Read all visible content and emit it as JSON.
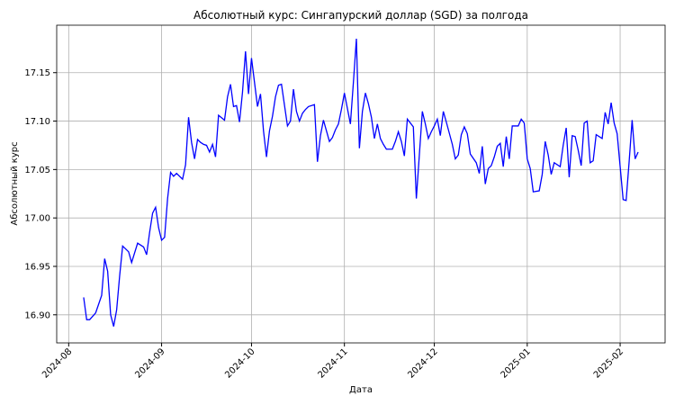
{
  "chart_data": {
    "type": "line",
    "title": "Абсолютный курс: Сингапурский доллар (SGD) за полгода",
    "xlabel": "Дата",
    "ylabel": "Абсолютный курс",
    "x": [
      "2024-08-06",
      "2024-08-07",
      "2024-08-08",
      "2024-08-10",
      "2024-08-12",
      "2024-08-13",
      "2024-08-14",
      "2024-08-15",
      "2024-08-16",
      "2024-08-17",
      "2024-08-18",
      "2024-08-19",
      "2024-08-21",
      "2024-08-22",
      "2024-08-24",
      "2024-08-26",
      "2024-08-27",
      "2024-08-28",
      "2024-08-29",
      "2024-08-30",
      "2024-08-31",
      "2024-09-01",
      "2024-09-02",
      "2024-09-03",
      "2024-09-04",
      "2024-09-05",
      "2024-09-06",
      "2024-09-08",
      "2024-09-09",
      "2024-09-10",
      "2024-09-11",
      "2024-09-12",
      "2024-09-13",
      "2024-09-14",
      "2024-09-15",
      "2024-09-16",
      "2024-09-17",
      "2024-09-18",
      "2024-09-19",
      "2024-09-20",
      "2024-09-22",
      "2024-09-23",
      "2024-09-24",
      "2024-09-25",
      "2024-09-26",
      "2024-09-27",
      "2024-09-28",
      "2024-09-29",
      "2024-09-30",
      "2024-10-01",
      "2024-10-02",
      "2024-10-03",
      "2024-10-04",
      "2024-10-05",
      "2024-10-06",
      "2024-10-07",
      "2024-10-08",
      "2024-10-09",
      "2024-10-10",
      "2024-10-11",
      "2024-10-13",
      "2024-10-14",
      "2024-10-15",
      "2024-10-16",
      "2024-10-17",
      "2024-10-18",
      "2024-10-19",
      "2024-10-20",
      "2024-10-22",
      "2024-10-23",
      "2024-10-24",
      "2024-10-25",
      "2024-10-27",
      "2024-10-28",
      "2024-10-29",
      "2024-10-30",
      "2024-10-31",
      "2024-11-01",
      "2024-11-02",
      "2024-11-03",
      "2024-11-04",
      "2024-11-05",
      "2024-11-06",
      "2024-11-07",
      "2024-11-08",
      "2024-11-09",
      "2024-11-10",
      "2024-11-11",
      "2024-11-12",
      "2024-11-13",
      "2024-11-14",
      "2024-11-15",
      "2024-11-17",
      "2024-11-18",
      "2024-11-19",
      "2024-11-20",
      "2024-11-21",
      "2024-11-22",
      "2024-11-24",
      "2024-11-25",
      "2024-11-26",
      "2024-11-27",
      "2024-11-28",
      "2024-11-29",
      "2024-11-30",
      "2024-12-01",
      "2024-12-02",
      "2024-12-03",
      "2024-12-04",
      "2024-12-05",
      "2024-12-07",
      "2024-12-08",
      "2024-12-09",
      "2024-12-10",
      "2024-12-11",
      "2024-12-12",
      "2024-12-13",
      "2024-12-15",
      "2024-12-16",
      "2024-12-17",
      "2024-12-18",
      "2024-12-19",
      "2024-12-20",
      "2024-12-21",
      "2024-12-22",
      "2024-12-23",
      "2024-12-24",
      "2024-12-25",
      "2024-12-26",
      "2024-12-27",
      "2024-12-29",
      "2024-12-30",
      "2024-12-31",
      "2025-01-01",
      "2025-01-02",
      "2025-01-03",
      "2025-01-05",
      "2025-01-06",
      "2025-01-07",
      "2025-01-08",
      "2025-01-09",
      "2025-01-10",
      "2025-01-12",
      "2025-01-13",
      "2025-01-14",
      "2025-01-15",
      "2025-01-16",
      "2025-01-17",
      "2025-01-18",
      "2025-01-19",
      "2025-01-20",
      "2025-01-21",
      "2025-01-22",
      "2025-01-23",
      "2025-01-24",
      "2025-01-26",
      "2025-01-27",
      "2025-01-28",
      "2025-01-29",
      "2025-01-30",
      "2025-01-31",
      "2025-02-02",
      "2025-02-03",
      "2025-02-04",
      "2025-02-05",
      "2025-02-06",
      "2025-02-07"
    ],
    "series": [
      {
        "name": "Абсолютный курс",
        "color": "#0000ff",
        "values": [
          16.918,
          16.895,
          16.895,
          16.902,
          16.92,
          16.958,
          16.945,
          16.9,
          16.888,
          16.905,
          16.94,
          16.971,
          16.965,
          16.954,
          16.974,
          16.97,
          16.962,
          16.985,
          17.005,
          17.011,
          16.99,
          16.977,
          16.98,
          17.02,
          17.047,
          17.043,
          17.046,
          17.04,
          17.055,
          17.104,
          17.078,
          17.061,
          17.081,
          17.078,
          17.076,
          17.075,
          17.068,
          17.076,
          17.063,
          17.106,
          17.101,
          17.125,
          17.138,
          17.115,
          17.116,
          17.099,
          17.13,
          17.172,
          17.128,
          17.165,
          17.14,
          17.115,
          17.128,
          17.09,
          17.063,
          17.09,
          17.105,
          17.125,
          17.137,
          17.138,
          17.095,
          17.1,
          17.133,
          17.11,
          17.1,
          17.108,
          17.112,
          17.115,
          17.117,
          17.058,
          17.085,
          17.101,
          17.079,
          17.083,
          17.091,
          17.097,
          17.112,
          17.129,
          17.113,
          17.097,
          17.14,
          17.185,
          17.072,
          17.11,
          17.129,
          17.118,
          17.104,
          17.082,
          17.097,
          17.082,
          17.076,
          17.071,
          17.071,
          17.079,
          17.089,
          17.079,
          17.064,
          17.102,
          17.094,
          17.02,
          17.065,
          17.11,
          17.097,
          17.082,
          17.089,
          17.095,
          17.102,
          17.085,
          17.11,
          17.099,
          17.076,
          17.061,
          17.065,
          17.086,
          17.094,
          17.087,
          17.066,
          17.057,
          17.046,
          17.074,
          17.035,
          17.051,
          17.054,
          17.063,
          17.074,
          17.077,
          17.053,
          17.084,
          17.061,
          17.095,
          17.095,
          17.102,
          17.098,
          17.061,
          17.051,
          17.027,
          17.028,
          17.045,
          17.079,
          17.065,
          17.045,
          17.057,
          17.053,
          17.075,
          17.093,
          17.042,
          17.085,
          17.084,
          17.07,
          17.054,
          17.098,
          17.1,
          17.057,
          17.059,
          17.086,
          17.082,
          17.109,
          17.097,
          17.119,
          17.098,
          17.087,
          17.019,
          17.018,
          17.058,
          17.101,
          17.061,
          17.068
        ]
      }
    ],
    "xlim": [
      "2024-07-28",
      "2025-02-16"
    ],
    "xticks": [
      {
        "value": "2024-08-01",
        "label": "2024-08"
      },
      {
        "value": "2024-09-01",
        "label": "2024-09"
      },
      {
        "value": "2024-10-01",
        "label": "2024-10"
      },
      {
        "value": "2024-11-01",
        "label": "2024-11"
      },
      {
        "value": "2024-12-01",
        "label": "2024-12"
      },
      {
        "value": "2025-01-01",
        "label": "2025-01"
      },
      {
        "value": "2025-02-01",
        "label": "2025-02"
      }
    ],
    "ylim": [
      16.871,
      17.199
    ],
    "yticks": [
      {
        "value": 16.9,
        "label": "16.90"
      },
      16.95,
      {
        "value": 17.0,
        "label": "17.00"
      },
      17.05,
      {
        "value": 17.1,
        "label": "17.10"
      },
      17.15
    ],
    "grid": true,
    "ylabel_color": "#0000ff"
  }
}
